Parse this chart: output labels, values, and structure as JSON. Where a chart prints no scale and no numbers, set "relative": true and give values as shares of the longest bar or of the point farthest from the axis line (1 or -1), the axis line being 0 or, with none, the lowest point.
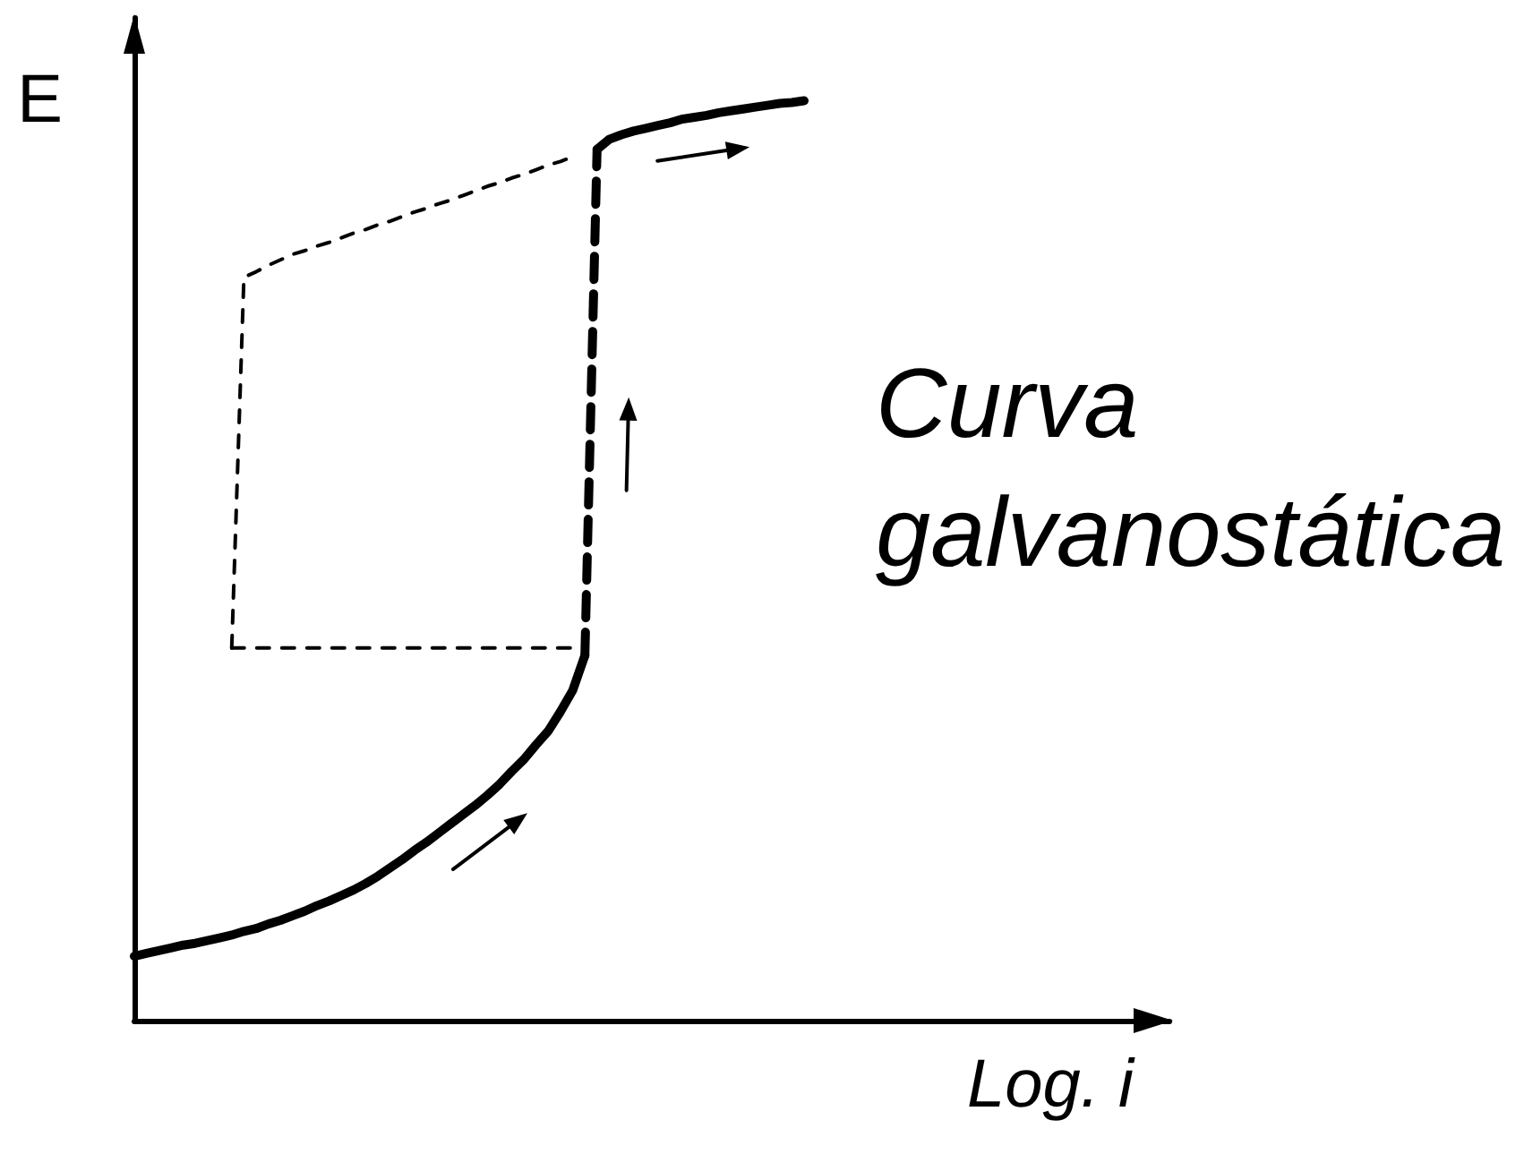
{
  "chart_data": {
    "type": "line",
    "title": "Curva galvanostática",
    "xlabel": "Log. i",
    "ylabel": "E",
    "relative": true,
    "grid": false,
    "marker": "none",
    "categories": [
      null,
      null,
      null,
      null,
      null,
      null,
      null,
      null,
      null,
      null,
      null,
      null,
      null,
      null,
      null,
      null,
      null,
      null,
      null,
      null,
      null,
      null,
      null,
      null,
      null,
      null,
      null,
      null,
      null,
      null,
      null,
      null,
      null,
      null,
      null,
      null,
      null,
      null,
      null,
      null,
      null,
      null,
      null,
      null,
      null,
      null,
      null,
      null,
      null,
      null,
      null,
      null,
      null,
      null,
      null,
      null,
      null,
      null,
      null,
      null,
      null,
      null,
      null,
      null,
      null,
      null,
      null,
      null,
      null,
      null,
      null,
      null,
      null,
      null,
      null,
      null,
      null,
      null,
      null,
      null,
      null,
      null,
      null,
      null,
      null,
      null
    ],
    "series": [
      {
        "color": "#000000",
        "line_style": "solid",
        "values": [
          0.07,
          0.073,
          0.076,
          0.079,
          0.082,
          0.084,
          0.087,
          0.09,
          0.093,
          0.097,
          0.1,
          0.105,
          0.109,
          0.114,
          0.119,
          0.125,
          0.13,
          0.136,
          0.142,
          0.149,
          0.157,
          0.166,
          0.175,
          0.185,
          0.194,
          0.204,
          0.214,
          0.224,
          0.234,
          0.245,
          0.257,
          0.271,
          0.284,
          0.3,
          0.315,
          0.336,
          0.359,
          0.397,
          null,
          null,
          null,
          null,
          null,
          null,
          null,
          null,
          null,
          null,
          null,
          null,
          null,
          null,
          null,
          null,
          null,
          null,
          null,
          null,
          null,
          null,
          null,
          null,
          null,
          null,
          null,
          null,
          null,
          null,
          null,
          null,
          null,
          null,
          null,
          null,
          null,
          null,
          null,
          null,
          null,
          null,
          null,
          null,
          null,
          null,
          null,
          null
        ]
      },
      {
        "color": "#000000",
        "line_style": "dashed",
        "values": [
          null,
          null,
          null,
          null,
          null,
          null,
          null,
          null,
          null,
          null,
          null,
          null,
          null,
          null,
          null,
          null,
          null,
          null,
          null,
          null,
          null,
          null,
          null,
          null,
          null,
          null,
          null,
          null,
          null,
          null,
          null,
          null,
          null,
          null,
          null,
          null,
          null,
          0.397,
          0.947,
          null,
          null,
          null,
          null,
          null,
          null,
          null,
          null,
          null,
          null,
          null,
          null,
          null,
          null,
          null,
          null,
          null,
          null,
          null,
          null,
          null,
          null,
          null,
          null,
          null,
          null,
          null,
          null,
          null,
          null,
          null,
          null,
          null,
          null,
          null,
          null,
          null,
          null,
          null,
          null,
          null,
          null,
          null,
          null,
          null,
          null,
          null
        ]
      },
      {
        "color": "#000000",
        "line_style": "solid",
        "values": [
          null,
          null,
          null,
          null,
          null,
          null,
          null,
          null,
          null,
          null,
          null,
          null,
          null,
          null,
          null,
          null,
          null,
          null,
          null,
          null,
          null,
          null,
          null,
          null,
          null,
          null,
          null,
          null,
          null,
          null,
          null,
          null,
          null,
          null,
          null,
          null,
          null,
          null,
          0.947,
          0.958,
          0.963,
          0.967,
          0.97,
          0.973,
          0.976,
          0.98,
          0.982,
          0.984,
          0.987,
          0.989,
          0.991,
          0.993,
          0.995,
          0.997,
          0.998,
          1,
          null,
          null,
          null,
          null,
          null,
          null,
          null,
          null,
          null,
          null,
          null,
          null,
          null,
          null,
          null,
          null,
          null,
          null,
          null,
          null,
          null,
          null,
          null,
          null,
          null,
          null,
          null,
          null,
          null,
          null
        ]
      },
      {
        "color": "#000000",
        "line_style": "dashed",
        "values": [
          null,
          null,
          null,
          null,
          null,
          null,
          null,
          null,
          0.405,
          0.405,
          0.405,
          0.405,
          0.405,
          0.405,
          0.405,
          0.405,
          0.405,
          0.405,
          0.405,
          0.405,
          0.405,
          0.405,
          0.405,
          0.405,
          0.405,
          0.405,
          0.405,
          0.405,
          0.405,
          0.405,
          0.405,
          0.405,
          0.405,
          0.405,
          0.405,
          0.405,
          0.405,
          null,
          null,
          null,
          null,
          null,
          null,
          null,
          null,
          null,
          null,
          null,
          null,
          null,
          null,
          null,
          null,
          null,
          null,
          null,
          null,
          null,
          null,
          null,
          null,
          null,
          null,
          null,
          null,
          null,
          null,
          null,
          null,
          null,
          null,
          null,
          null,
          null,
          null,
          null,
          null,
          null,
          null,
          null,
          null,
          null,
          null,
          null,
          null,
          null
        ]
      },
      {
        "color": "#000000",
        "line_style": "dashed",
        "values": [
          null,
          null,
          null,
          null,
          null,
          null,
          null,
          null,
          0.405,
          0.808,
          0.814,
          0.821,
          0.827,
          0.833,
          0.837,
          0.842,
          0.846,
          0.851,
          0.856,
          0.86,
          0.865,
          0.869,
          0.874,
          0.879,
          0.883,
          0.888,
          0.892,
          0.897,
          0.902,
          0.907,
          0.911,
          0.916,
          0.92,
          0.925,
          0.93,
          0.934,
          0.939,
          null,
          null,
          null,
          null,
          null,
          null,
          null,
          null,
          null,
          null,
          null,
          null,
          null,
          null,
          null,
          null,
          null,
          null,
          null,
          null,
          null,
          null,
          null,
          null,
          null,
          null,
          null,
          null,
          null,
          null,
          null,
          null,
          null,
          null,
          null,
          null,
          null,
          null,
          null,
          null,
          null,
          null,
          null,
          null,
          null,
          null,
          null,
          null,
          null
        ]
      }
    ]
  }
}
